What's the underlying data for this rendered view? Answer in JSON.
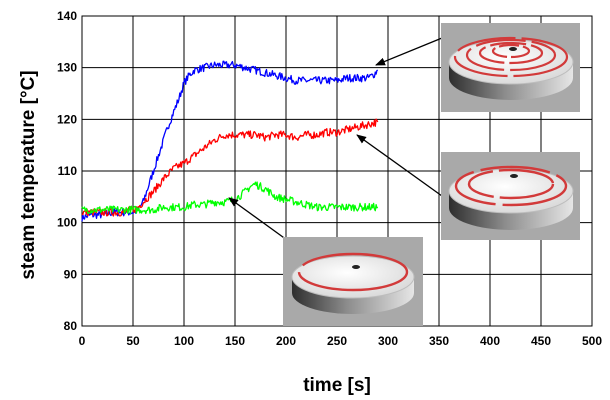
{
  "chart_data": {
    "type": "line",
    "xlabel": "time [s]",
    "ylabel": "steam temperature [°C]",
    "xlim": [
      0,
      500
    ],
    "ylim": [
      80,
      140
    ],
    "xticks": [
      0,
      50,
      100,
      150,
      200,
      250,
      300,
      350,
      400,
      450,
      500
    ],
    "yticks": [
      80,
      90,
      100,
      110,
      120,
      130,
      140
    ],
    "grid": true,
    "legend": "none",
    "series": [
      {
        "color": "#0000ff",
        "x": [
          0,
          10,
          20,
          30,
          40,
          50,
          55,
          60,
          65,
          70,
          75,
          80,
          85,
          90,
          95,
          100,
          105,
          110,
          120,
          130,
          140,
          150,
          160,
          170,
          180,
          190,
          200,
          210,
          220,
          230,
          240,
          250,
          260,
          270,
          280,
          285,
          290
        ],
        "y": [
          101,
          101.5,
          101.5,
          102,
          102,
          102,
          102.5,
          104,
          107,
          110,
          113,
          116,
          119,
          121.5,
          124,
          127,
          128.5,
          129.5,
          130,
          130.5,
          130.5,
          130.5,
          130,
          129.5,
          129,
          128.5,
          128,
          127.5,
          127.5,
          127.5,
          127.5,
          127.5,
          128,
          128,
          128,
          128.5,
          129.5
        ]
      },
      {
        "color": "#ff0000",
        "x": [
          0,
          10,
          20,
          30,
          40,
          50,
          55,
          60,
          70,
          80,
          90,
          100,
          110,
          120,
          130,
          140,
          150,
          160,
          170,
          180,
          190,
          200,
          210,
          220,
          230,
          240,
          250,
          260,
          270,
          280,
          290
        ],
        "y": [
          102,
          102,
          102,
          102,
          102,
          102.5,
          103,
          104,
          106,
          108.5,
          110.5,
          111.5,
          113,
          114.5,
          116,
          117,
          117,
          117,
          117,
          116.5,
          117,
          117,
          116.5,
          117,
          117,
          117.5,
          117.5,
          118,
          118.5,
          119,
          119.5
        ]
      },
      {
        "color": "#00ff00",
        "x": [
          0,
          10,
          20,
          30,
          40,
          50,
          60,
          70,
          80,
          90,
          100,
          110,
          120,
          130,
          140,
          150,
          160,
          165,
          170,
          175,
          180,
          190,
          200,
          210,
          220,
          230,
          240,
          250,
          260,
          270,
          280,
          290
        ],
        "y": [
          102.5,
          102.5,
          102.5,
          102.5,
          102.5,
          102.5,
          102.5,
          102.5,
          103,
          103,
          103,
          103.5,
          103.5,
          104,
          104,
          104.5,
          106,
          107,
          107.5,
          107,
          106.5,
          105,
          104.5,
          104,
          103.5,
          103,
          103,
          103,
          103,
          103,
          103,
          103
        ]
      }
    ],
    "annotations": [
      {
        "target_series": 0,
        "x": 290,
        "y": 129.5
      },
      {
        "target_series": 1,
        "x": 265,
        "y": 118.5
      },
      {
        "target_series": 2,
        "x": 145,
        "y": 104.5
      }
    ]
  }
}
